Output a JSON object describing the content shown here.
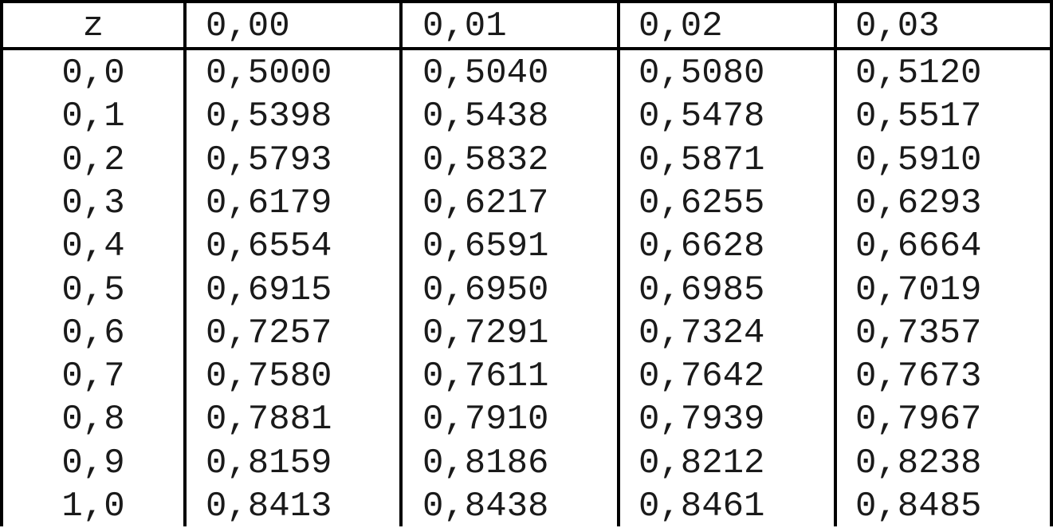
{
  "table": {
    "headers": [
      "z",
      "0,00",
      "0,01",
      "0,02",
      "0,03"
    ],
    "rows": [
      [
        "0,0",
        "0,5000",
        "0,5040",
        "0,5080",
        "0,5120"
      ],
      [
        "0,1",
        "0,5398",
        "0,5438",
        "0,5478",
        "0,5517"
      ],
      [
        "0,2",
        "0,5793",
        "0,5832",
        "0,5871",
        "0,5910"
      ],
      [
        "0,3",
        "0,6179",
        "0,6217",
        "0,6255",
        "0,6293"
      ],
      [
        "0,4",
        "0,6554",
        "0,6591",
        "0,6628",
        "0,6664"
      ],
      [
        "0,5",
        "0,6915",
        "0,6950",
        "0,6985",
        "0,7019"
      ],
      [
        "0,6",
        "0,7257",
        "0,7291",
        "0,7324",
        "0,7357"
      ],
      [
        "0,7",
        "0,7580",
        "0,7611",
        "0,7642",
        "0,7673"
      ],
      [
        "0,8",
        "0,7881",
        "0,7910",
        "0,7939",
        "0,7967"
      ],
      [
        "0,9",
        "0,8159",
        "0,8186",
        "0,8212",
        "0,8238"
      ],
      [
        "1,0",
        "0,8413",
        "0,8438",
        "0,8461",
        "0,8485"
      ]
    ]
  }
}
